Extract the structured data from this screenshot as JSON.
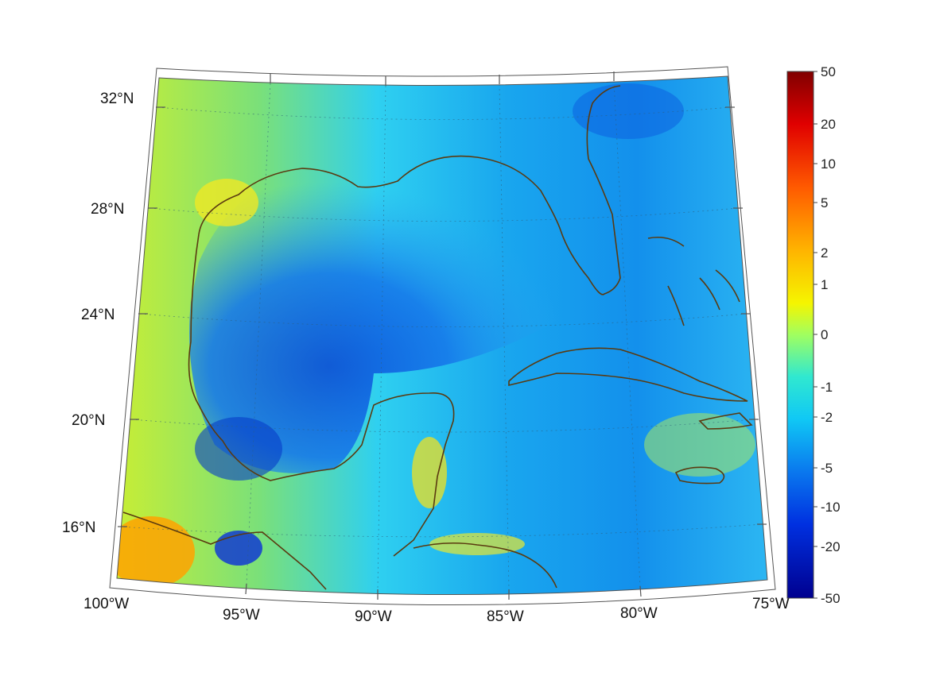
{
  "map": {
    "projection": "conic",
    "lon_range": [
      -100,
      -75
    ],
    "lat_range": [
      14,
      33
    ],
    "grid": true,
    "grid_style": "dotted",
    "coastline_color": "#5a3a10",
    "background_gradient": "west-east",
    "lon_labels": [
      "100°W",
      "95°W",
      "90°W",
      "85°W",
      "80°W",
      "75°W"
    ],
    "lat_labels": [
      "16°N",
      "20°N",
      "24°N",
      "28°N",
      "32°N"
    ]
  },
  "colorbar": {
    "colormap": "jet",
    "tick_labels": [
      "50",
      "20",
      "10",
      "5",
      "2",
      "1",
      "0",
      "-1",
      "-2",
      "-5",
      "-10",
      "-20",
      "-50"
    ],
    "top_color": "#800000",
    "bottom_color": "#00008f"
  }
}
